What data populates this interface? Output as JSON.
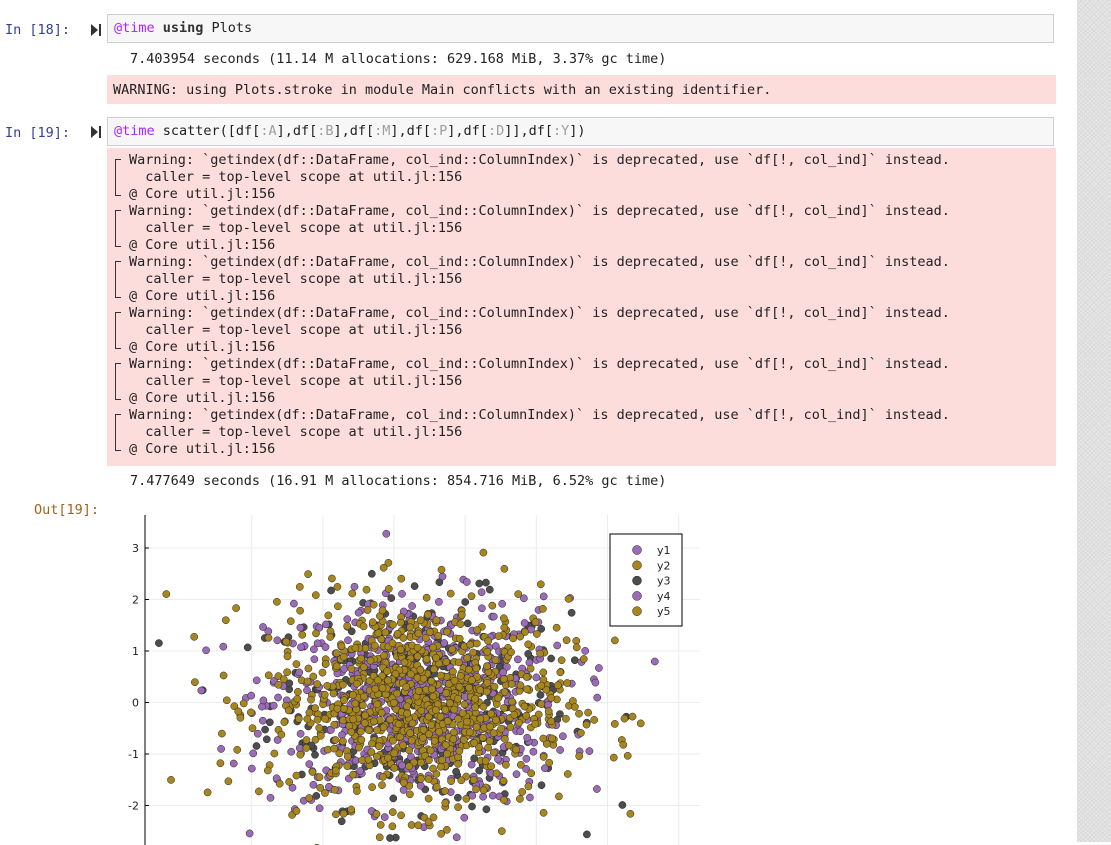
{
  "cells": [
    {
      "prompt": "In [18]:",
      "code": {
        "macro": "@time",
        "keyword": "using",
        "rest": " Plots"
      },
      "stdout": "7.403954 seconds (11.14 M allocations: 629.168 MiB, 3.37% gc time)",
      "stderr": "WARNING: using Plots.stroke in module Main conflicts with an existing identifier."
    },
    {
      "prompt": "In [19]:",
      "code": {
        "macro": "@time",
        "seg1": " scatter([df[",
        "s1": ":A",
        "seg2": "],df[",
        "s2": ":B",
        "seg3": "],df[",
        "s3": ":M",
        "seg4": "],df[",
        "s4": ":P",
        "seg5": "],df[",
        "s5": ":D",
        "seg6": "]],df[",
        "s6": ":Y",
        "seg7": "])"
      },
      "warnings": [
        {
          "line1": "Warning: `getindex(df::DataFrame, col_ind::ColumnIndex)` is deprecated, use `df[!, col_ind]` instead.",
          "line2": "  caller = top-level scope at util.jl:156",
          "line3": "@ Core util.jl:156"
        },
        {
          "line1": "Warning: `getindex(df::DataFrame, col_ind::ColumnIndex)` is deprecated, use `df[!, col_ind]` instead.",
          "line2": "  caller = top-level scope at util.jl:156",
          "line3": "@ Core util.jl:156"
        },
        {
          "line1": "Warning: `getindex(df::DataFrame, col_ind::ColumnIndex)` is deprecated, use `df[!, col_ind]` instead.",
          "line2": "  caller = top-level scope at util.jl:156",
          "line3": "@ Core util.jl:156"
        },
        {
          "line1": "Warning: `getindex(df::DataFrame, col_ind::ColumnIndex)` is deprecated, use `df[!, col_ind]` instead.",
          "line2": "  caller = top-level scope at util.jl:156",
          "line3": "@ Core util.jl:156"
        },
        {
          "line1": "Warning: `getindex(df::DataFrame, col_ind::ColumnIndex)` is deprecated, use `df[!, col_ind]` instead.",
          "line2": "  caller = top-level scope at util.jl:156",
          "line3": "@ Core util.jl:156"
        },
        {
          "line1": "Warning: `getindex(df::DataFrame, col_ind::ColumnIndex)` is deprecated, use `df[!, col_ind]` instead.",
          "line2": "  caller = top-level scope at util.jl:156",
          "line3": "@ Core util.jl:156"
        }
      ],
      "stdout": "7.477649 seconds (16.91 M allocations: 854.716 MiB, 6.52% gc time)",
      "out_prompt": "Out[19]:"
    }
  ],
  "colors": {
    "y1": "#9b6bb5",
    "y2": "#a7861f",
    "y3": "#4d4d4d",
    "y4": "#9b6bb5",
    "y5": "#a7861f",
    "warning_bg": "#fddcdc",
    "macro": "#aa22ff",
    "prompt": "#303f9f",
    "out_prompt": "#a6611a"
  },
  "chart_data": {
    "type": "scatter",
    "ytick_labels": [
      "3",
      "2",
      "1",
      "0",
      "-1",
      "-2"
    ],
    "ylim": [
      -2.7,
      3.6
    ],
    "xlim": [
      -3.5,
      4.3
    ],
    "legend_position": "top-right",
    "series": [
      {
        "name": "y1",
        "color": "#9b6bb5",
        "spread": 1.0
      },
      {
        "name": "y2",
        "color": "#a7861f",
        "spread": 1.0
      },
      {
        "name": "y3",
        "color": "#4d4d4d",
        "spread": 1.0
      },
      {
        "name": "y4",
        "color": "#9b6bb5",
        "spread": 1.0
      },
      {
        "name": "y5",
        "color": "#a7861f",
        "spread": 1.0
      }
    ],
    "points_per_series": 320
  }
}
